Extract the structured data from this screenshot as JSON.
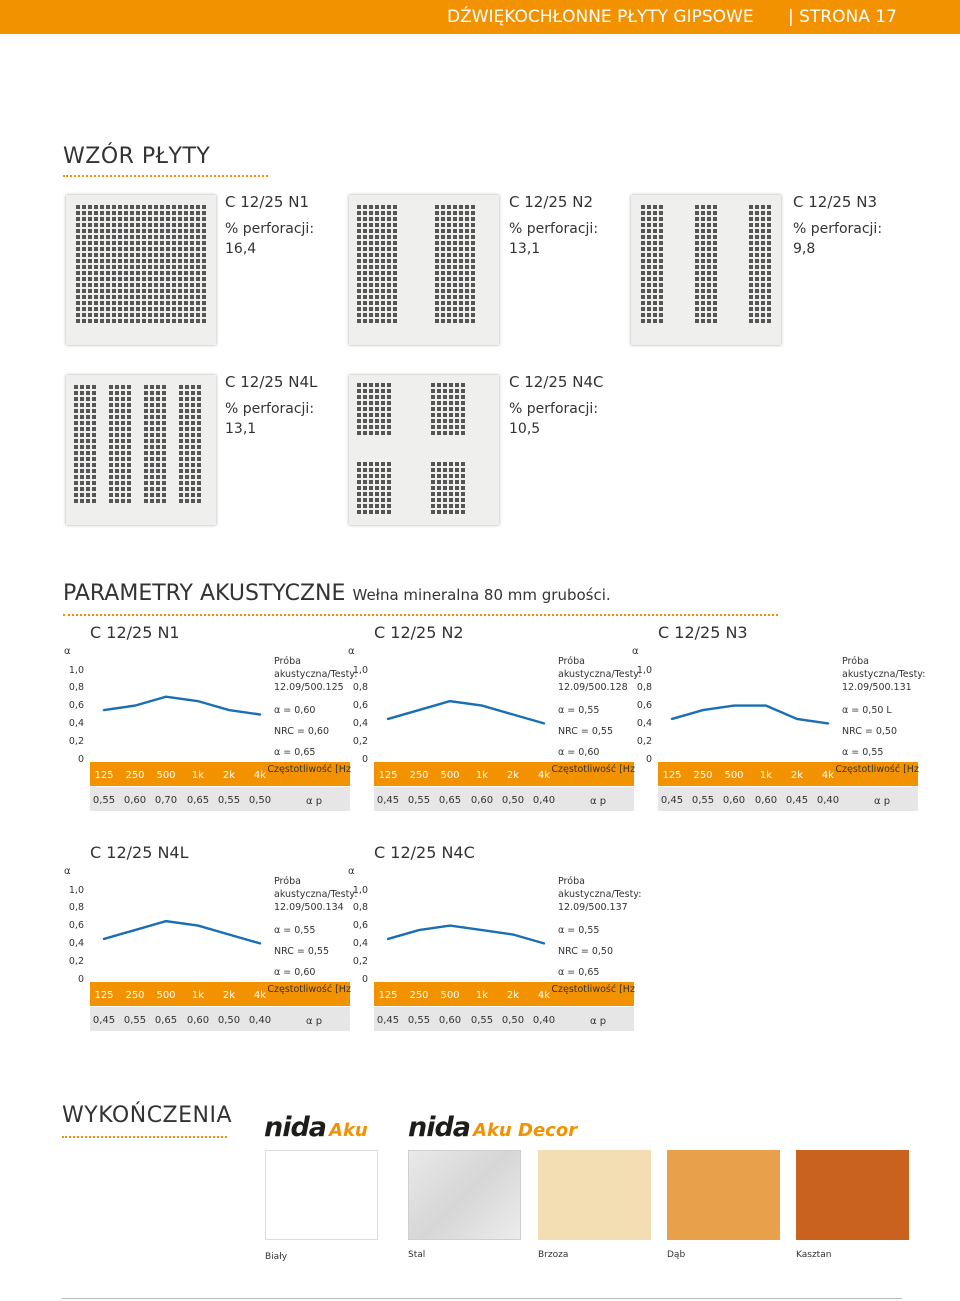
{
  "header": {
    "title": "DŹWIĘKOCHŁONNE PŁYTY GIPSOWE",
    "page": "| STRONA 17",
    "color": "#f39200"
  },
  "pattern_section": {
    "title": "WZÓR PŁYTY",
    "panels": [
      {
        "name": "C 12/25 N1",
        "perf_label": "% perforacji:",
        "perf_value": "16,4"
      },
      {
        "name": "C 12/25 N2",
        "perf_label": "% perforacji:",
        "perf_value": "13,1"
      },
      {
        "name": "C 12/25 N3",
        "perf_label": "% perforacji:",
        "perf_value": "9,8"
      },
      {
        "name": "C 12/25 N4L",
        "perf_label": "% perforacji:",
        "perf_value": "13,1"
      },
      {
        "name": "C 12/25 N4C",
        "perf_label": "% perforacji:",
        "perf_value": "10,5"
      }
    ]
  },
  "acoustic_section": {
    "title": "PARAMETRY AKUSTYCZNE",
    "subtitle": "Wełna mineralna 80 mm grubości."
  },
  "chart_data": [
    {
      "type": "line",
      "title": "C 12/25 N1",
      "y_axis_label": "α",
      "y_ticks": [
        "1,0",
        "0,8",
        "0,6",
        "0,4",
        "0,2",
        "0"
      ],
      "ylim": [
        0,
        1.0
      ],
      "categories": [
        "125",
        "250",
        "500",
        "1k",
        "2k",
        "4k"
      ],
      "values": [
        0.55,
        0.6,
        0.7,
        0.65,
        0.55,
        0.5
      ],
      "value_labels": [
        "0,55",
        "0,60",
        "0,70",
        "0,65",
        "0,55",
        "0,50"
      ],
      "test_label": "Próba akustyczna/Testy:",
      "test_id": "12.09/500.125",
      "aw": "α  = 0,60",
      "nrc": "NRC = 0,60",
      "am": "α  = 0,65",
      "freq_label": "Częstotliwość [Hz]",
      "ap_label": "α p",
      "line_color": "#1a6fb4"
    },
    {
      "type": "line",
      "title": "C 12/25 N2",
      "y_axis_label": "α",
      "y_ticks": [
        "1,0",
        "0,8",
        "0,6",
        "0,4",
        "0,2",
        "0"
      ],
      "ylim": [
        0,
        1.0
      ],
      "categories": [
        "125",
        "250",
        "500",
        "1k",
        "2k",
        "4k"
      ],
      "values": [
        0.45,
        0.55,
        0.65,
        0.6,
        0.5,
        0.4
      ],
      "value_labels": [
        "0,45",
        "0,55",
        "0,65",
        "0,60",
        "0,50",
        "0,40"
      ],
      "test_label": "Próba akustyczna/Testy:",
      "test_id": "12.09/500.128",
      "aw": "α  = 0,55",
      "nrc": "NRC = 0,55",
      "am": "α  = 0,60",
      "freq_label": "Częstotliwość [Hz]",
      "ap_label": "α p",
      "line_color": "#1a6fb4"
    },
    {
      "type": "line",
      "title": "C 12/25 N3",
      "y_axis_label": "α",
      "y_ticks": [
        "1,0",
        "0,8",
        "0,6",
        "0,4",
        "0,2",
        "0"
      ],
      "ylim": [
        0,
        1.0
      ],
      "categories": [
        "125",
        "250",
        "500",
        "1k",
        "2k",
        "4k"
      ],
      "values": [
        0.45,
        0.55,
        0.6,
        0.6,
        0.45,
        0.4
      ],
      "value_labels": [
        "0,45",
        "0,55",
        "0,60",
        "0,60",
        "0,45",
        "0,40"
      ],
      "test_label": "Próba akustyczna/Testy:",
      "test_id": "12.09/500.131",
      "aw": "α  = 0,50 L",
      "nrc": "NRC = 0,50",
      "am": "α  = 0,55",
      "freq_label": "Częstotliwość [Hz]",
      "ap_label": "α p",
      "line_color": "#1a6fb4"
    },
    {
      "type": "line",
      "title": "C 12/25 N4L",
      "y_axis_label": "α",
      "y_ticks": [
        "1,0",
        "0,8",
        "0,6",
        "0,4",
        "0,2",
        "0"
      ],
      "ylim": [
        0,
        1.0
      ],
      "categories": [
        "125",
        "250",
        "500",
        "1k",
        "2k",
        "4k"
      ],
      "values": [
        0.45,
        0.55,
        0.65,
        0.6,
        0.5,
        0.4
      ],
      "value_labels": [
        "0,45",
        "0,55",
        "0,65",
        "0,60",
        "0,50",
        "0,40"
      ],
      "test_label": "Próba akustyczna/Testy:",
      "test_id": "12.09/500.134",
      "aw": "α  = 0,55",
      "nrc": "NRC = 0,55",
      "am": "α  = 0,60",
      "freq_label": "Częstotliwość [Hz]",
      "ap_label": "α p",
      "line_color": "#1a6fb4"
    },
    {
      "type": "line",
      "title": "C 12/25 N4C",
      "y_axis_label": "α",
      "y_ticks": [
        "1,0",
        "0,8",
        "0,6",
        "0,4",
        "0,2",
        "0"
      ],
      "ylim": [
        0,
        1.0
      ],
      "categories": [
        "125",
        "250",
        "500",
        "1k",
        "2k",
        "4k"
      ],
      "values": [
        0.45,
        0.55,
        0.6,
        0.55,
        0.5,
        0.4
      ],
      "value_labels": [
        "0,45",
        "0,55",
        "0,60",
        "0,55",
        "0,50",
        "0,40"
      ],
      "test_label": "Próba akustyczna/Testy:",
      "test_id": "12.09/500.137",
      "aw": "α  = 0,55",
      "nrc": "NRC = 0,50",
      "am": "α  = 0,65",
      "freq_label": "Częstotliwość [Hz]",
      "ap_label": "α p",
      "line_color": "#1a6fb4"
    }
  ],
  "finish_section": {
    "title": "WYKOŃCZENIA",
    "logos": [
      {
        "brand": "nida",
        "product": "Aku"
      },
      {
        "brand": "nida",
        "product": "Aku Decor"
      }
    ],
    "swatches": [
      {
        "label": "Biały",
        "color": "#ffffff"
      },
      {
        "label": "Stal",
        "color": "#e4e4e4"
      },
      {
        "label": "Brzoza",
        "color": "#f3ddb3"
      },
      {
        "label": "Dąb",
        "color": "#e8a14a"
      },
      {
        "label": "Kasztan",
        "color": "#c8621e"
      }
    ]
  }
}
